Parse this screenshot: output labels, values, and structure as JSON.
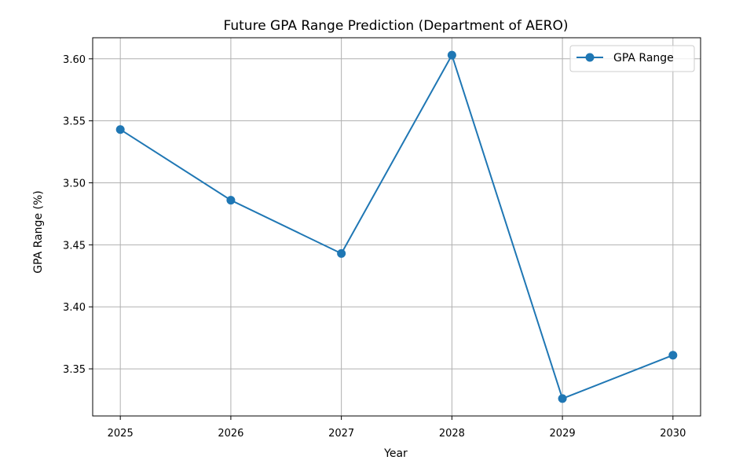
{
  "chart_data": {
    "type": "line",
    "title": "Future GPA Range Prediction (Department of AERO)",
    "xlabel": "Year",
    "ylabel": "GPA Range (%)",
    "x": [
      2025,
      2026,
      2027,
      2028,
      2029,
      2030
    ],
    "x_tick_labels": [
      "2025",
      "2026",
      "2027",
      "2028",
      "2029",
      "2030"
    ],
    "series": [
      {
        "name": "GPA Range",
        "values": [
          3.543,
          3.486,
          3.443,
          3.603,
          3.326,
          3.361
        ],
        "color": "#1f77b4",
        "marker": "circle"
      }
    ],
    "xlim": [
      2024.75,
      2030.25
    ],
    "ylim": [
      3.312,
      3.617
    ],
    "y_ticks": [
      3.35,
      3.4,
      3.45,
      3.5,
      3.55,
      3.6
    ],
    "y_tick_labels": [
      "3.35",
      "3.40",
      "3.45",
      "3.50",
      "3.55",
      "3.60"
    ],
    "grid": true,
    "legend": {
      "position": "top-right",
      "entries": [
        "GPA Range"
      ]
    }
  }
}
